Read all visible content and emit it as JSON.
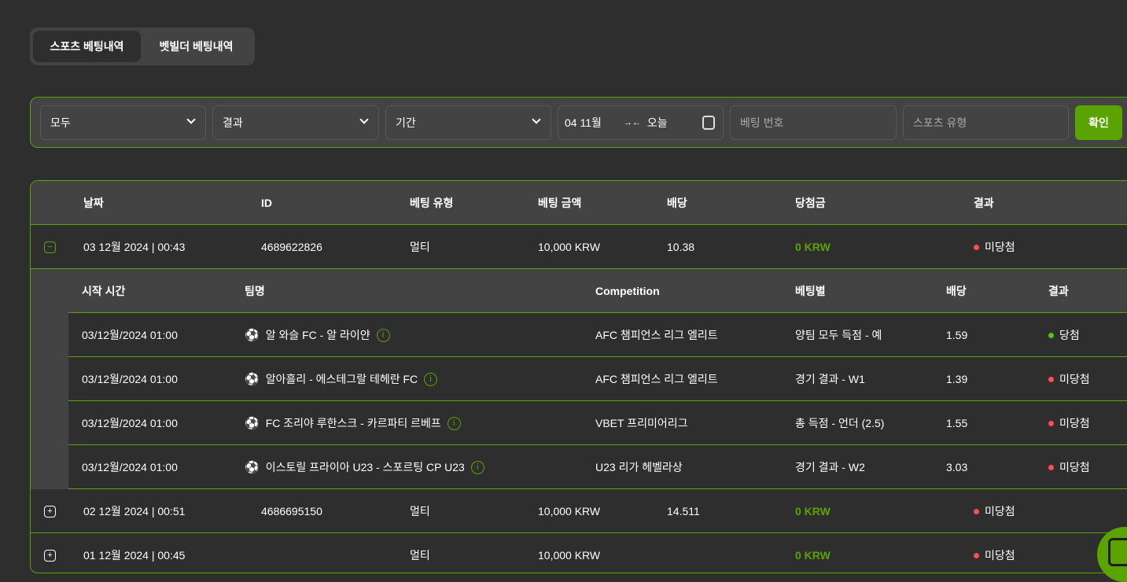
{
  "tabs": [
    {
      "label": "스포츠 베팅내역",
      "active": true
    },
    {
      "label": "벳빌더 베팅내역",
      "active": false
    }
  ],
  "filters": {
    "type": "모두",
    "result": "결과",
    "period": "기간",
    "date_from": "04 11월",
    "date_to": "오늘",
    "bet_number_placeholder": "베팅 번호",
    "sport_type_placeholder": "스포츠 유형",
    "confirm": "확인"
  },
  "table": {
    "headers": [
      "날짜",
      "ID",
      "베팅 유형",
      "베팅 금액",
      "배당",
      "당첨금",
      "결과"
    ],
    "rows": [
      {
        "date": "03 12월 2024 | 00:43",
        "id": "4689622826",
        "type": "멀티",
        "amount": "10,000 KRW",
        "odds": "10.38",
        "win": "0 KRW",
        "result": "미당첨",
        "expanded": true
      },
      {
        "date": "02 12월 2024 | 00:51",
        "id": "4686695150",
        "type": "멀티",
        "amount": "10,000 KRW",
        "odds": "14.511",
        "win": "0 KRW",
        "result": "미당첨",
        "expanded": false
      },
      {
        "date": "01 12월 2024 | 00:45",
        "id": "",
        "type": "멀티",
        "amount": "10,000 KRW",
        "odds": "",
        "win": "0 KRW",
        "result": "미당첨",
        "expanded": false
      }
    ]
  },
  "details": {
    "headers": [
      "시작 시간",
      "팀명",
      "Competition",
      "베팅별",
      "배당",
      "결과"
    ],
    "rows": [
      {
        "time": "03/12월/2024 01:00",
        "teams": "알 와슬 FC - 알 라이얀",
        "competition": "AFC 챔피언스 리그 엘리트",
        "selection": "양팀 모두 득점 - 예",
        "odds": "1.59",
        "result": "당첨"
      },
      {
        "time": "03/12월/2024 01:00",
        "teams": "알아흘리 - 에스테그랄 테헤란 FC",
        "competition": "AFC 챔피언스 리그 엘리트",
        "selection": "경기 결과 - W1",
        "odds": "1.39",
        "result": "미당첨"
      },
      {
        "time": "03/12월/2024 01:00",
        "teams": "FC 조리야 루한스크 - 카르파티 르베프",
        "competition": "VBET 프리미어리그",
        "selection": "총 득점 - 언더 (2.5)",
        "odds": "1.55",
        "result": "미당첨"
      },
      {
        "time": "03/12월/2024 01:00",
        "teams": "이스토릴 프라이아 U23 - 스포르팅 CP U23",
        "competition": "U23 리가 헤벨라상",
        "selection": "경기 결과 - W2",
        "odds": "3.03",
        "result": "미당첨"
      }
    ]
  },
  "colors": {
    "accent": "#5aa300",
    "lost": "#ff4d4d",
    "won": "#52c41a",
    "background": "#2e2e2e",
    "panel": "#434343"
  }
}
